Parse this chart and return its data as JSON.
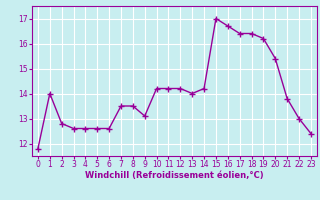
{
  "x": [
    0,
    1,
    2,
    3,
    4,
    5,
    6,
    7,
    8,
    9,
    10,
    11,
    12,
    13,
    14,
    15,
    16,
    17,
    18,
    19,
    20,
    21,
    22,
    23
  ],
  "y": [
    11.8,
    14.0,
    12.8,
    12.6,
    12.6,
    12.6,
    12.6,
    13.5,
    13.5,
    13.1,
    14.2,
    14.2,
    14.2,
    14.0,
    14.2,
    17.0,
    16.7,
    16.4,
    16.4,
    16.2,
    15.4,
    13.8,
    13.0,
    12.4
  ],
  "line_color": "#990099",
  "marker": "+",
  "marker_size": 4,
  "marker_lw": 1.0,
  "line_width": 1.0,
  "xlabel": "Windchill (Refroidissement éolien,°C)",
  "ylabel": "",
  "xlim": [
    -0.5,
    23.5
  ],
  "ylim": [
    11.5,
    17.5
  ],
  "yticks": [
    12,
    13,
    14,
    15,
    16,
    17
  ],
  "xticks": [
    0,
    1,
    2,
    3,
    4,
    5,
    6,
    7,
    8,
    9,
    10,
    11,
    12,
    13,
    14,
    15,
    16,
    17,
    18,
    19,
    20,
    21,
    22,
    23
  ],
  "bg_color": "#c8eef0",
  "grid_color": "#ffffff",
  "tick_label_size": 5.5,
  "xlabel_size": 6,
  "label_color": "#990099",
  "spine_color": "#990099"
}
